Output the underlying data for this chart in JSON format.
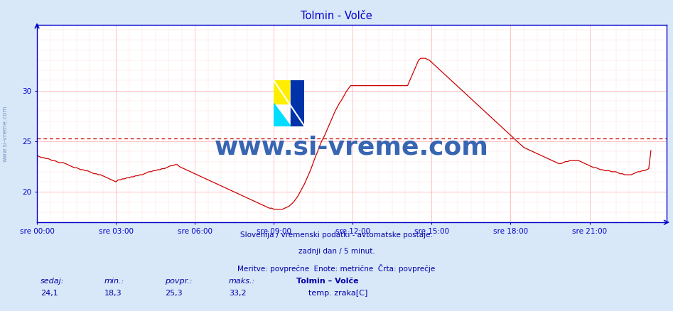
{
  "title": "Tolmin - Volče",
  "title_color": "#0000cc",
  "bg_color": "#d8e8f8",
  "plot_bg_color": "#ffffff",
  "line_color": "#cc0000",
  "avg_line_color": "#cc0000",
  "avg_line_value": 25.3,
  "grid_major_color": "#ffaaaa",
  "grid_minor_color": "#ffdddd",
  "axis_color": "#0000cc",
  "tick_label_color": "#0000cc",
  "ylabel_ticks": [
    20,
    25,
    30
  ],
  "ymin": 17.0,
  "ymax": 36.5,
  "xlim_min": 0,
  "xlim_max": 287,
  "x_tick_positions": [
    0,
    36,
    72,
    108,
    144,
    180,
    216,
    252
  ],
  "x_tick_labels": [
    "sre 00:00",
    "sre 03:00",
    "sre 06:00",
    "sre 09:00",
    "sre 12:00",
    "sre 15:00",
    "sre 18:00",
    "sre 21:00"
  ],
  "footer_lines": [
    "Slovenija / vremenski podatki - avtomatske postaje.",
    "zadnji dan / 5 minut.",
    "Meritve: povprečne  Enote: metrične  Črta: povprečje"
  ],
  "footer_color": "#0000aa",
  "stats_labels": [
    "sedaj:",
    "min.:",
    "povpr.:",
    "maks.:"
  ],
  "stats_values": [
    "24,1",
    "18,3",
    "25,3",
    "33,2"
  ],
  "stats_bold_label": "Tolmin – Volče",
  "stats_series_label": "temp. zraka[C]",
  "stats_color": "#0000aa",
  "watermark_text": "www.si-vreme.com",
  "watermark_color": "#2255aa",
  "sidebar_text": "www.si-vreme.com",
  "temp_data": [
    23.6,
    23.5,
    23.4,
    23.4,
    23.3,
    23.3,
    23.2,
    23.1,
    23.1,
    23.0,
    22.9,
    22.9,
    22.9,
    22.8,
    22.7,
    22.6,
    22.5,
    22.4,
    22.4,
    22.3,
    22.2,
    22.2,
    22.1,
    22.1,
    22.0,
    21.9,
    21.8,
    21.8,
    21.7,
    21.7,
    21.6,
    21.5,
    21.4,
    21.3,
    21.2,
    21.1,
    21.0,
    21.2,
    21.2,
    21.3,
    21.3,
    21.4,
    21.4,
    21.5,
    21.5,
    21.6,
    21.6,
    21.7,
    21.7,
    21.8,
    21.9,
    22.0,
    22.0,
    22.1,
    22.1,
    22.2,
    22.2,
    22.3,
    22.3,
    22.4,
    22.5,
    22.6,
    22.6,
    22.7,
    22.7,
    22.5,
    22.4,
    22.3,
    22.2,
    22.1,
    22.0,
    21.9,
    21.8,
    21.7,
    21.6,
    21.5,
    21.4,
    21.3,
    21.2,
    21.1,
    21.0,
    20.9,
    20.8,
    20.7,
    20.6,
    20.5,
    20.4,
    20.3,
    20.2,
    20.1,
    20.0,
    19.9,
    19.8,
    19.7,
    19.6,
    19.5,
    19.4,
    19.3,
    19.2,
    19.1,
    19.0,
    18.9,
    18.8,
    18.7,
    18.6,
    18.5,
    18.4,
    18.4,
    18.3,
    18.3,
    18.3,
    18.3,
    18.3,
    18.4,
    18.5,
    18.6,
    18.8,
    19.0,
    19.3,
    19.6,
    20.0,
    20.4,
    20.8,
    21.3,
    21.8,
    22.3,
    22.9,
    23.5,
    24.0,
    24.6,
    25.1,
    25.5,
    26.0,
    26.5,
    27.0,
    27.5,
    28.0,
    28.4,
    28.8,
    29.1,
    29.5,
    29.9,
    30.2,
    30.5,
    30.5,
    30.5,
    30.5,
    30.5,
    30.5,
    30.5,
    30.5,
    30.5,
    30.5,
    30.5,
    30.5,
    30.5,
    30.5,
    30.5,
    30.5,
    30.5,
    30.5,
    30.5,
    30.5,
    30.5,
    30.5,
    30.5,
    30.5,
    30.5,
    30.5,
    30.5,
    31.0,
    31.5,
    32.0,
    32.5,
    33.0,
    33.2,
    33.2,
    33.2,
    33.1,
    33.0,
    32.8,
    32.6,
    32.4,
    32.2,
    32.0,
    31.8,
    31.6,
    31.4,
    31.2,
    31.0,
    30.8,
    30.6,
    30.4,
    30.2,
    30.0,
    29.8,
    29.6,
    29.4,
    29.2,
    29.0,
    28.8,
    28.6,
    28.4,
    28.2,
    28.0,
    27.8,
    27.6,
    27.4,
    27.2,
    27.0,
    26.8,
    26.6,
    26.4,
    26.2,
    26.0,
    25.8,
    25.6,
    25.4,
    25.2,
    25.0,
    24.8,
    24.6,
    24.4,
    24.3,
    24.2,
    24.1,
    24.0,
    23.9,
    23.8,
    23.7,
    23.6,
    23.5,
    23.4,
    23.3,
    23.2,
    23.1,
    23.0,
    22.9,
    22.8,
    22.8,
    22.9,
    23.0,
    23.0,
    23.1,
    23.1,
    23.1,
    23.1,
    23.1,
    23.0,
    22.9,
    22.8,
    22.7,
    22.6,
    22.5,
    22.4,
    22.4,
    22.3,
    22.2,
    22.2,
    22.1,
    22.1,
    22.1,
    22.0,
    22.0,
    22.0,
    21.9,
    21.8,
    21.8,
    21.7,
    21.7,
    21.7,
    21.7,
    21.8,
    21.9,
    22.0,
    22.0,
    22.1,
    22.1,
    22.2,
    22.3,
    24.1
  ]
}
